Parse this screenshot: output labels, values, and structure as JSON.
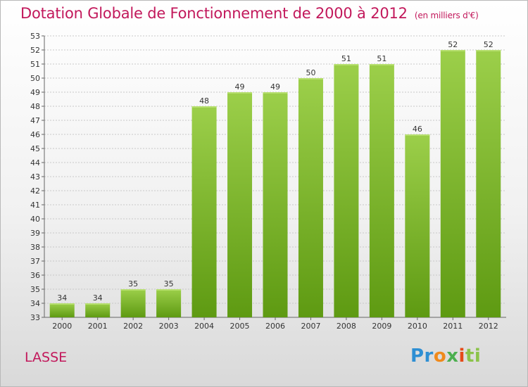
{
  "header": {
    "title": "Dotation Globale de Fonctionnement de 2000 à 2012",
    "unit": "(en milliers d'€)"
  },
  "footer": {
    "commune": "LASSE",
    "logo": [
      "Pr",
      "o",
      "x",
      "i",
      "ti"
    ]
  },
  "colors": {
    "title": "#c2185b",
    "bar_light": "#9ccf4a",
    "bar_dark": "#5e9a12",
    "grid": "#c8c8c8"
  },
  "chart_data": {
    "type": "bar",
    "title": "Dotation Globale de Fonctionnement de 2000 à 2012",
    "subtitle": "(en milliers d'€)",
    "categories": [
      "2000",
      "2001",
      "2002",
      "2003",
      "2004",
      "2005",
      "2006",
      "2007",
      "2008",
      "2009",
      "2010",
      "2011",
      "2012"
    ],
    "values": [
      34,
      34,
      35,
      35,
      48,
      49,
      49,
      50,
      51,
      51,
      46,
      52,
      52
    ],
    "ylim": [
      33,
      53
    ],
    "yticks": [
      33,
      34,
      35,
      36,
      37,
      38,
      39,
      40,
      41,
      42,
      43,
      44,
      45,
      46,
      47,
      48,
      49,
      50,
      51,
      52,
      53
    ],
    "grid": true,
    "xlabel": "",
    "ylabel": ""
  }
}
